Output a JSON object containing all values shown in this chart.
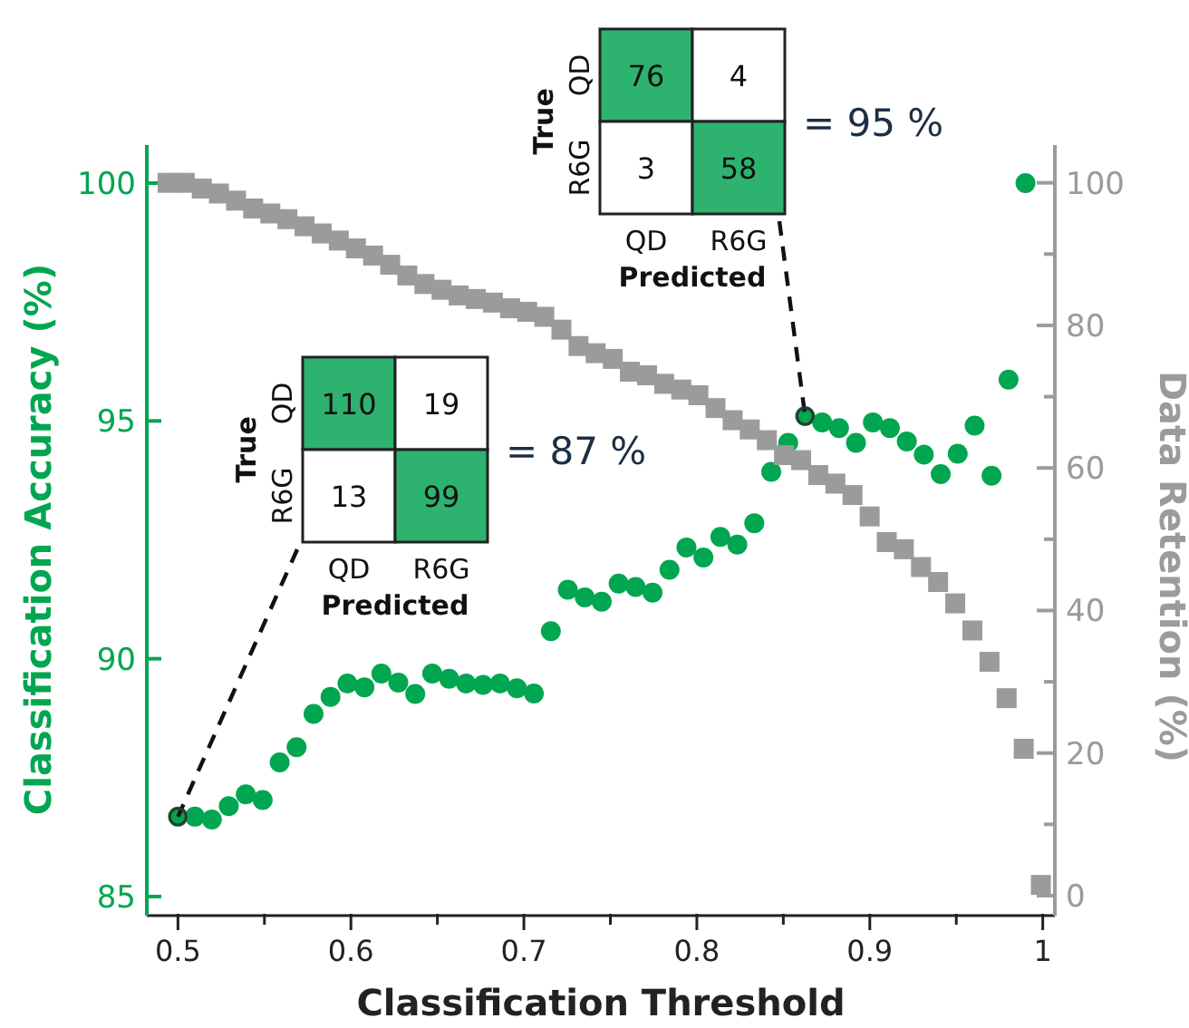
{
  "chart_data": [
    {
      "type": "scatter",
      "xlabel": "Classification Threshold",
      "ylabel": "Classification Accuracy (%)",
      "y2label": "Data Retention (%)",
      "xlim": [
        0.482,
        1.007
      ],
      "ylim": [
        84.6,
        100.8
      ],
      "y2lim": [
        -2.8,
        105.3
      ],
      "xticks": [
        0.5,
        {
          "value": 0.55,
          "label": null
        },
        0.6,
        {
          "value": 0.65,
          "label": null
        },
        0.7,
        {
          "value": 0.75,
          "label": null
        },
        0.8,
        {
          "value": 0.85,
          "label": null
        },
        0.9,
        {
          "value": 0.95,
          "label": null
        },
        1
      ],
      "yticks": [
        85,
        90,
        95,
        100
      ],
      "y2ticks": [
        0,
        {
          "value": 10,
          "label": null
        },
        20,
        {
          "value": 30,
          "label": null
        },
        40,
        {
          "value": 50,
          "label": null
        },
        60,
        {
          "value": 70,
          "label": null
        },
        80,
        {
          "value": 90,
          "label": null
        },
        100
      ],
      "grid": false,
      "series": [
        {
          "color": "#00a650",
          "marker": "circle",
          "x": [
            0.5,
            0.5098,
            0.5196,
            0.5294,
            0.5392,
            0.549,
            0.5588,
            0.5686,
            0.5784,
            0.5882,
            0.598,
            0.6078,
            0.6176,
            0.6274,
            0.6372,
            0.647,
            0.6568,
            0.6666,
            0.6764,
            0.6862,
            0.696,
            0.7058,
            0.7156,
            0.7254,
            0.7352,
            0.745,
            0.7548,
            0.7646,
            0.7744,
            0.7842,
            0.794,
            0.8038,
            0.8136,
            0.8234,
            0.8332,
            0.843,
            0.8528,
            0.8626,
            0.8724,
            0.8822,
            0.892,
            0.9018,
            0.9116,
            0.9214,
            0.9312,
            0.941,
            0.9508,
            0.9606,
            0.9704,
            0.9802,
            0.99
          ],
          "values": [
            86.68,
            86.68,
            86.62,
            86.9,
            87.15,
            87.03,
            87.82,
            88.14,
            88.84,
            89.2,
            89.48,
            89.4,
            89.69,
            89.5,
            89.26,
            89.69,
            89.58,
            89.48,
            89.45,
            89.48,
            89.38,
            89.27,
            90.58,
            91.45,
            91.29,
            91.2,
            91.58,
            91.51,
            91.39,
            91.87,
            92.34,
            92.13,
            92.56,
            92.4,
            92.85,
            93.93,
            94.54,
            95.1,
            94.97,
            94.85,
            94.54,
            94.97,
            94.85,
            94.57,
            94.29,
            93.88,
            94.31,
            94.9,
            93.85,
            95.87,
            100
          ]
        },
        {
          "color": "#9b9b9b",
          "marker": "square",
          "axis": "y2",
          "x": [
            0.494,
            0.5039,
            0.5138,
            0.5237,
            0.5336,
            0.5435,
            0.5534,
            0.5633,
            0.5732,
            0.5831,
            0.593,
            0.6029,
            0.6128,
            0.6227,
            0.6326,
            0.6425,
            0.6524,
            0.6623,
            0.6722,
            0.6821,
            0.692,
            0.7019,
            0.7118,
            0.7217,
            0.7316,
            0.7415,
            0.7514,
            0.7613,
            0.7712,
            0.7811,
            0.791,
            0.8009,
            0.8108,
            0.8207,
            0.8306,
            0.8405,
            0.8504,
            0.8603,
            0.8702,
            0.8801,
            0.89,
            0.8999,
            0.9098,
            0.9197,
            0.9296,
            0.9395,
            0.9494,
            0.9593,
            0.9692,
            0.9791,
            0.989,
            0.9989
          ],
          "values": [
            100,
            100,
            99.2,
            98.5,
            97.5,
            96.4,
            95.7,
            94.9,
            93.9,
            92.9,
            91.9,
            90.8,
            89.8,
            88.5,
            87,
            85.8,
            85,
            84.2,
            83.7,
            83.2,
            82.4,
            81.9,
            81.2,
            79.4,
            77.1,
            76.1,
            75.3,
            73.5,
            73,
            71.8,
            71,
            70.2,
            68.4,
            66.7,
            65.4,
            63.9,
            61.8,
            61.1,
            59,
            57.8,
            56.2,
            53.2,
            49.6,
            48.6,
            46.1,
            44,
            41,
            37.2,
            32.8,
            27.7,
            20.6,
            1.5
          ]
        }
      ]
    },
    {
      "type": "heatmap",
      "categories": [
        "QD",
        "R6G"
      ],
      "y_categories": [
        "QD",
        "R6G"
      ],
      "cells": [
        [
          110,
          19
        ],
        [
          13,
          99
        ]
      ],
      "data_labels": true,
      "xlabel": "Predicted",
      "ylabel": "True",
      "annotations": [
        "= 87 %"
      ],
      "color": "#2db36f"
    },
    {
      "type": "heatmap",
      "categories": [
        "QD",
        "R6G"
      ],
      "y_categories": [
        "QD",
        "R6G"
      ],
      "cells": [
        [
          76,
          4
        ],
        [
          3,
          58
        ]
      ],
      "data_labels": true,
      "xlabel": "Predicted",
      "ylabel": "True",
      "annotations": [
        "= 95 %"
      ],
      "color": "#2db36f"
    }
  ]
}
